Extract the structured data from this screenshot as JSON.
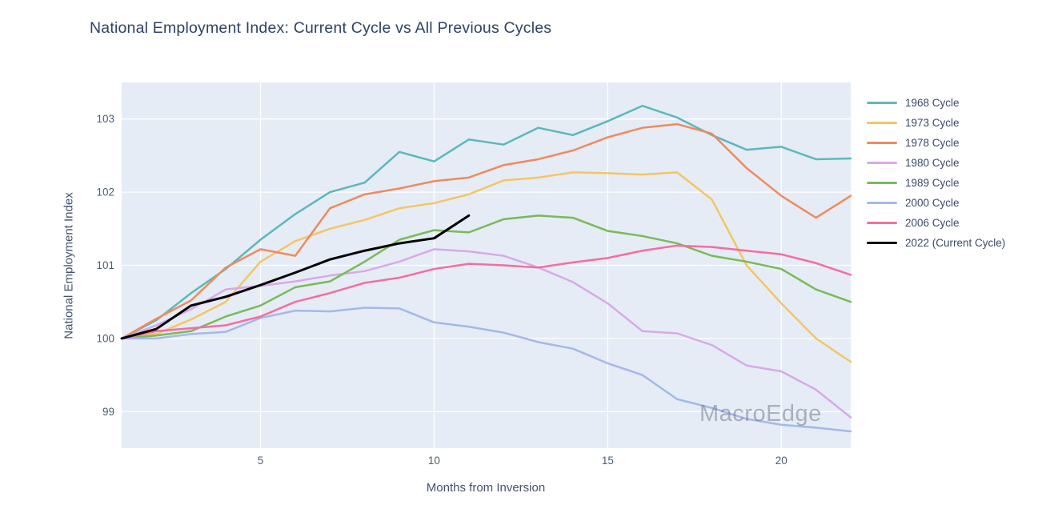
{
  "title": "National Employment Index: Current Cycle vs All Previous Cycles",
  "watermark": {
    "text": "MacroEdge"
  },
  "axes": {
    "x_title": "Months from Inversion",
    "y_title": "National Employment Index"
  },
  "chart_data": {
    "type": "line",
    "title": "National Employment Index: Current Cycle vs All Previous Cycles",
    "xlabel": "Months from Inversion",
    "ylabel": "National Employment Index",
    "x": [
      1,
      2,
      3,
      4,
      5,
      6,
      7,
      8,
      9,
      10,
      11,
      12,
      13,
      14,
      15,
      16,
      17,
      18,
      19,
      20,
      21,
      22
    ],
    "x_ticks": [
      5,
      10,
      15,
      20
    ],
    "y_ticks": [
      99,
      100,
      101,
      102,
      103
    ],
    "xlim": [
      1,
      22
    ],
    "ylim": [
      98.5,
      103.5
    ],
    "grid": true,
    "legend_position": "right",
    "plot_bg": "#e5ecf6",
    "grid_color": "#ffffff",
    "series": [
      {
        "name": "1968 Cycle",
        "color": "#5cb8ba",
        "width": 2.5,
        "values": [
          100.0,
          100.25,
          100.62,
          100.95,
          101.35,
          101.7,
          102.0,
          102.13,
          102.55,
          102.42,
          102.72,
          102.65,
          102.88,
          102.78,
          102.97,
          103.18,
          103.02,
          102.78,
          102.58,
          102.62,
          102.45,
          102.46
        ]
      },
      {
        "name": "1973 Cycle",
        "color": "#f5c563",
        "width": 2.5,
        "values": [
          100.0,
          100.06,
          100.26,
          100.5,
          101.05,
          101.33,
          101.5,
          101.62,
          101.78,
          101.85,
          101.97,
          102.16,
          102.2,
          102.27,
          102.26,
          102.24,
          102.27,
          101.9,
          101.0,
          100.48,
          100.0,
          99.68
        ]
      },
      {
        "name": "1978 Cycle",
        "color": "#f08a5c",
        "width": 2.5,
        "values": [
          100.0,
          100.27,
          100.52,
          100.97,
          101.22,
          101.13,
          101.78,
          101.97,
          102.05,
          102.15,
          102.2,
          102.37,
          102.45,
          102.57,
          102.75,
          102.88,
          102.93,
          102.8,
          102.33,
          101.95,
          101.65,
          101.95
        ]
      },
      {
        "name": "1980 Cycle",
        "color": "#d9a9e6",
        "width": 2.5,
        "values": [
          100.0,
          100.18,
          100.4,
          100.67,
          100.72,
          100.78,
          100.86,
          100.92,
          101.05,
          101.22,
          101.19,
          101.13,
          100.97,
          100.77,
          100.48,
          100.1,
          100.07,
          99.91,
          99.63,
          99.55,
          99.3,
          98.92
        ]
      },
      {
        "name": "1989 Cycle",
        "color": "#7aba57",
        "width": 2.5,
        "values": [
          100.0,
          100.04,
          100.1,
          100.3,
          100.45,
          100.7,
          100.78,
          101.05,
          101.35,
          101.48,
          101.45,
          101.63,
          101.68,
          101.65,
          101.47,
          101.4,
          101.3,
          101.13,
          101.05,
          100.95,
          100.67,
          100.5
        ]
      },
      {
        "name": "2000 Cycle",
        "color": "#a3b9e8",
        "width": 2.5,
        "values": [
          100.0,
          100.0,
          100.06,
          100.09,
          100.28,
          100.38,
          100.37,
          100.42,
          100.41,
          100.22,
          100.16,
          100.08,
          99.95,
          99.86,
          99.66,
          99.5,
          99.17,
          99.05,
          98.9,
          98.82,
          98.78,
          98.73
        ]
      },
      {
        "name": "2006 Cycle",
        "color": "#f56d9e",
        "width": 2.5,
        "values": [
          100.0,
          100.1,
          100.14,
          100.18,
          100.3,
          100.5,
          100.62,
          100.76,
          100.83,
          100.95,
          101.02,
          101.0,
          100.97,
          101.04,
          101.1,
          101.2,
          101.27,
          101.25,
          101.2,
          101.15,
          101.03,
          100.87
        ]
      },
      {
        "name": "2022 (Current Cycle)",
        "color": "#000000",
        "width": 3,
        "values": [
          100.0,
          100.13,
          100.45,
          100.57,
          100.73,
          100.9,
          101.08,
          101.2,
          101.3,
          101.37,
          101.68
        ]
      }
    ]
  }
}
